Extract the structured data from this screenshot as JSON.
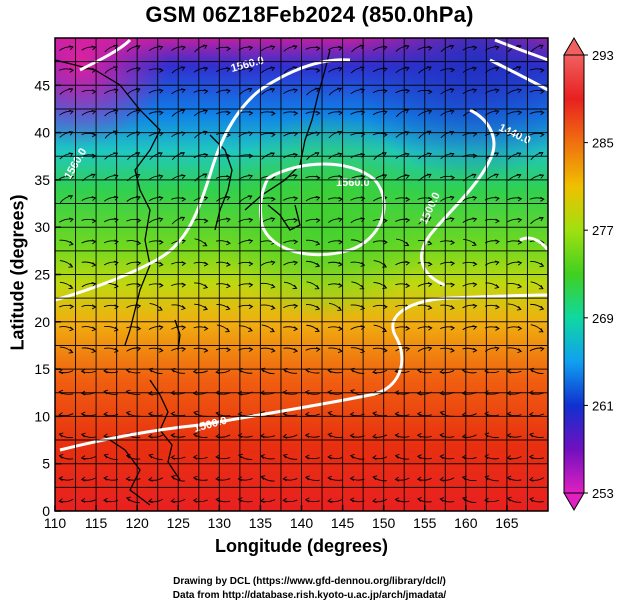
{
  "title": "GSM 06Z18Feb2024 (850.0hPa)",
  "xaxis": {
    "label": "Longitude (degrees)",
    "ticks": [
      "110",
      "115",
      "120",
      "125",
      "130",
      "135",
      "140",
      "145",
      "150",
      "155",
      "160",
      "165"
    ],
    "range": [
      110,
      170
    ]
  },
  "yaxis": {
    "label": "Latitude  (degrees)",
    "ticks": [
      "0",
      "5",
      "10",
      "15",
      "20",
      "25",
      "30",
      "35",
      "40",
      "45"
    ],
    "range": [
      0,
      50
    ]
  },
  "colorbar": {
    "labels": [
      "293",
      "285",
      "277",
      "269",
      "261",
      "253"
    ],
    "range": [
      253,
      293
    ],
    "colors": [
      "#e0209a",
      "#7010c0",
      "#1030d0",
      "#10a0f0",
      "#10d8a0",
      "#40d020",
      "#a0e010",
      "#f0c000",
      "#f07010",
      "#e02010",
      "#f06060"
    ]
  },
  "contours": {
    "labels": [
      "1560.0",
      "1560.0",
      "1440.0",
      "1500.0",
      "1500.0",
      "1560.0"
    ]
  },
  "credits": {
    "line1": "Drawing by DCL (https://www.gfd-dennou.org/library/dcl/)",
    "line2": "Data from http://database.rish.kyoto-u.ac.jp/arch/jmadata/"
  }
}
